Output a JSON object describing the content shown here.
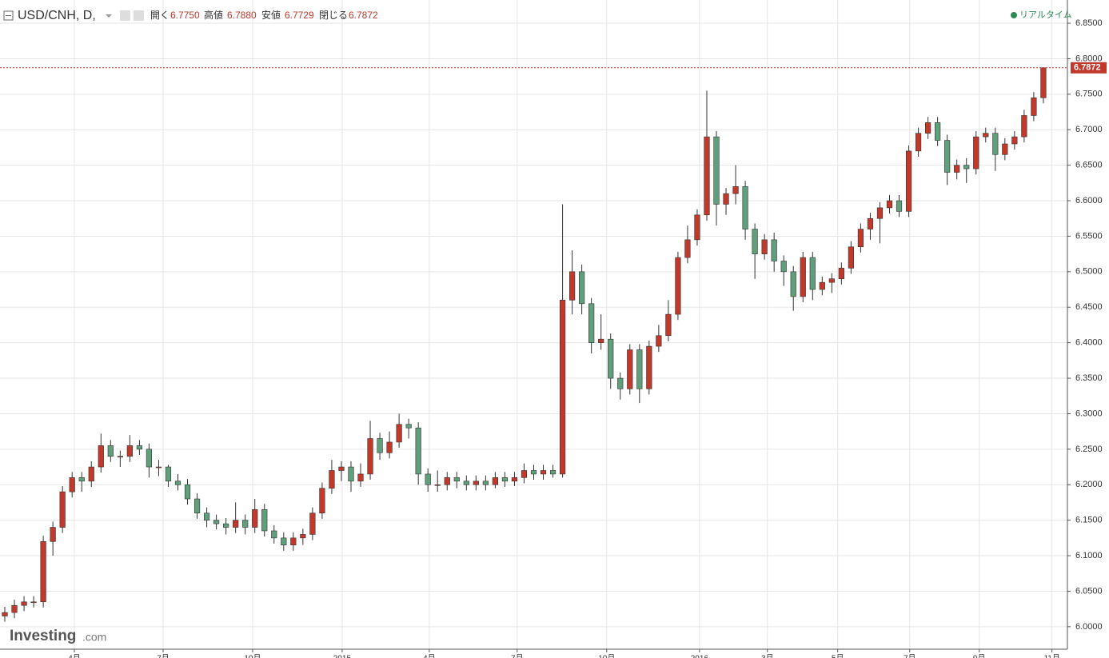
{
  "header": {
    "symbol": "USD/CNH, D,",
    "open_label": "開く",
    "open": "6.7750",
    "high_label": "高値",
    "high": "6.7880",
    "low_label": "安値",
    "low": "6.7729",
    "close_label": "閉じる",
    "close": "6.7872",
    "realtime": "リアルタイム"
  },
  "logo": {
    "brand": "Investing",
    "suffix": ".com"
  },
  "chart_data": {
    "type": "candlestick",
    "up_color": "#c0392b",
    "down_color": "#5f9f7b",
    "grid": true,
    "xlim": [
      0,
      111
    ],
    "ylim": [
      5.9683,
      6.8827
    ],
    "xticks": [
      {
        "value": 7.73,
        "label": "4月"
      },
      {
        "value": 16.96,
        "label": "7月"
      },
      {
        "value": 26.27,
        "label": "10月"
      },
      {
        "value": 35.58,
        "label": "2015"
      },
      {
        "value": 44.64,
        "label": "4月"
      },
      {
        "value": 53.78,
        "label": "7月"
      },
      {
        "value": 63.09,
        "label": "10月"
      },
      {
        "value": 72.74,
        "label": "2016"
      },
      {
        "value": 79.8,
        "label": "3月"
      },
      {
        "value": 87.11,
        "label": "5月"
      },
      {
        "value": 94.6,
        "label": "7月"
      },
      {
        "value": 101.83,
        "label": "9月"
      },
      {
        "value": 109.39,
        "label": "11月"
      }
    ],
    "yticks": [
      {
        "value": 6.0,
        "label": "6.0000"
      },
      {
        "value": 6.05,
        "label": "6.0500"
      },
      {
        "value": 6.1,
        "label": "6.1000"
      },
      {
        "value": 6.15,
        "label": "6.1500"
      },
      {
        "value": 6.2,
        "label": "6.2000"
      },
      {
        "value": 6.25,
        "label": "6.2500"
      },
      {
        "value": 6.3,
        "label": "6.3000"
      },
      {
        "value": 6.35,
        "label": "6.3500"
      },
      {
        "value": 6.4,
        "label": "6.4000"
      },
      {
        "value": 6.45,
        "label": "6.4500"
      },
      {
        "value": 6.5,
        "label": "6.5000"
      },
      {
        "value": 6.55,
        "label": "6.5500"
      },
      {
        "value": 6.6,
        "label": "6.6000"
      },
      {
        "value": 6.65,
        "label": "6.6500"
      },
      {
        "value": 6.7,
        "label": "6.7000"
      },
      {
        "value": 6.75,
        "label": "6.7500"
      },
      {
        "value": 6.8,
        "label": "6.8000"
      },
      {
        "value": 6.85,
        "label": "6.8500"
      }
    ],
    "open": [
      6.015,
      6.02,
      6.03,
      6.035,
      6.035,
      6.12,
      6.14,
      6.19,
      6.21,
      6.205,
      6.225,
      6.255,
      6.24,
      6.24,
      6.255,
      6.25,
      6.225,
      6.225,
      6.205,
      6.2,
      6.18,
      6.16,
      6.15,
      6.145,
      6.14,
      6.15,
      6.14,
      6.165,
      6.135,
      6.125,
      6.115,
      6.125,
      6.13,
      6.16,
      6.195,
      6.22,
      6.225,
      6.205,
      6.215,
      6.265,
      6.245,
      6.26,
      6.285,
      6.28,
      6.215,
      6.2,
      6.2,
      6.21,
      6.205,
      6.2,
      6.205,
      6.2,
      6.21,
      6.205,
      6.21,
      6.22,
      6.215,
      6.22,
      6.215,
      6.46,
      6.5,
      6.455,
      6.4,
      6.405,
      6.35,
      6.335,
      6.39,
      6.335,
      6.395,
      6.41,
      6.44,
      6.52,
      6.545,
      6.58,
      6.69,
      6.595,
      6.61,
      6.62,
      6.56,
      6.525,
      6.545,
      6.515,
      6.5,
      6.465,
      6.52,
      6.475,
      6.485,
      6.49,
      6.505,
      6.535,
      6.56,
      6.575,
      6.59,
      6.6,
      6.585,
      6.67,
      6.695,
      6.71,
      6.685,
      6.64,
      6.65,
      6.645,
      6.69,
      6.695,
      6.665,
      6.68,
      6.69,
      6.72,
      6.745
    ],
    "high": [
      6.028,
      6.038,
      6.043,
      6.043,
      6.128,
      6.148,
      6.198,
      6.218,
      6.218,
      6.233,
      6.272,
      6.263,
      6.248,
      6.27,
      6.263,
      6.258,
      6.235,
      6.228,
      6.215,
      6.208,
      6.188,
      6.168,
      6.158,
      6.153,
      6.175,
      6.158,
      6.18,
      6.173,
      6.143,
      6.133,
      6.133,
      6.138,
      6.168,
      6.203,
      6.235,
      6.233,
      6.233,
      6.23,
      6.29,
      6.273,
      6.275,
      6.3,
      6.293,
      6.288,
      6.223,
      6.22,
      6.218,
      6.218,
      6.213,
      6.213,
      6.213,
      6.218,
      6.218,
      6.218,
      6.23,
      6.228,
      6.228,
      6.228,
      6.595,
      6.53,
      6.51,
      6.463,
      6.44,
      6.413,
      6.358,
      6.398,
      6.398,
      6.403,
      6.425,
      6.46,
      6.528,
      6.565,
      6.588,
      6.755,
      6.698,
      6.618,
      6.65,
      6.628,
      6.568,
      6.553,
      6.555,
      6.523,
      6.508,
      6.528,
      6.528,
      6.493,
      6.498,
      6.513,
      6.543,
      6.568,
      6.583,
      6.598,
      6.608,
      6.608,
      6.678,
      6.703,
      6.718,
      6.718,
      6.693,
      6.658,
      6.66,
      6.698,
      6.703,
      6.703,
      6.688,
      6.698,
      6.728,
      6.753,
      6.788
    ],
    "low": [
      6.007,
      6.012,
      6.022,
      6.027,
      6.027,
      6.1,
      6.132,
      6.182,
      6.19,
      6.197,
      6.217,
      6.232,
      6.225,
      6.232,
      6.242,
      6.21,
      6.212,
      6.197,
      6.192,
      6.172,
      6.152,
      6.14,
      6.137,
      6.13,
      6.132,
      6.13,
      6.132,
      6.127,
      6.117,
      6.107,
      6.107,
      6.115,
      6.122,
      6.152,
      6.187,
      6.205,
      6.19,
      6.197,
      6.207,
      6.235,
      6.237,
      6.252,
      6.265,
      6.2,
      6.19,
      6.19,
      6.192,
      6.195,
      6.192,
      6.192,
      6.192,
      6.195,
      6.197,
      6.198,
      6.202,
      6.207,
      6.207,
      6.21,
      6.21,
      6.44,
      6.44,
      6.385,
      6.39,
      6.335,
      6.32,
      6.327,
      6.315,
      6.327,
      6.387,
      6.402,
      6.432,
      6.512,
      6.537,
      6.572,
      6.565,
      6.58,
      6.595,
      6.545,
      6.49,
      6.517,
      6.5,
      6.48,
      6.445,
      6.457,
      6.46,
      6.467,
      6.47,
      6.482,
      6.497,
      6.527,
      6.545,
      6.54,
      6.582,
      6.577,
      6.577,
      6.662,
      6.687,
      6.677,
      6.622,
      6.63,
      6.625,
      6.637,
      6.682,
      6.642,
      6.657,
      6.672,
      6.682,
      6.712,
      6.737
    ],
    "close": [
      6.02,
      6.03,
      6.035,
      6.035,
      6.12,
      6.14,
      6.19,
      6.21,
      6.205,
      6.225,
      6.255,
      6.24,
      6.24,
      6.255,
      6.25,
      6.225,
      6.225,
      6.205,
      6.2,
      6.18,
      6.16,
      6.15,
      6.145,
      6.14,
      6.15,
      6.14,
      6.165,
      6.135,
      6.125,
      6.115,
      6.125,
      6.13,
      6.16,
      6.195,
      6.22,
      6.225,
      6.205,
      6.215,
      6.265,
      6.245,
      6.26,
      6.285,
      6.28,
      6.215,
      6.2,
      6.2,
      6.21,
      6.205,
      6.2,
      6.205,
      6.2,
      6.21,
      6.205,
      6.21,
      6.22,
      6.215,
      6.22,
      6.215,
      6.46,
      6.5,
      6.455,
      6.4,
      6.405,
      6.35,
      6.335,
      6.39,
      6.335,
      6.395,
      6.41,
      6.44,
      6.52,
      6.545,
      6.58,
      6.69,
      6.595,
      6.61,
      6.62,
      6.56,
      6.525,
      6.545,
      6.515,
      6.5,
      6.465,
      6.52,
      6.475,
      6.485,
      6.49,
      6.505,
      6.535,
      6.56,
      6.575,
      6.59,
      6.6,
      6.585,
      6.67,
      6.695,
      6.71,
      6.685,
      6.64,
      6.65,
      6.645,
      6.69,
      6.695,
      6.665,
      6.68,
      6.69,
      6.72,
      6.745,
      6.7872
    ]
  }
}
